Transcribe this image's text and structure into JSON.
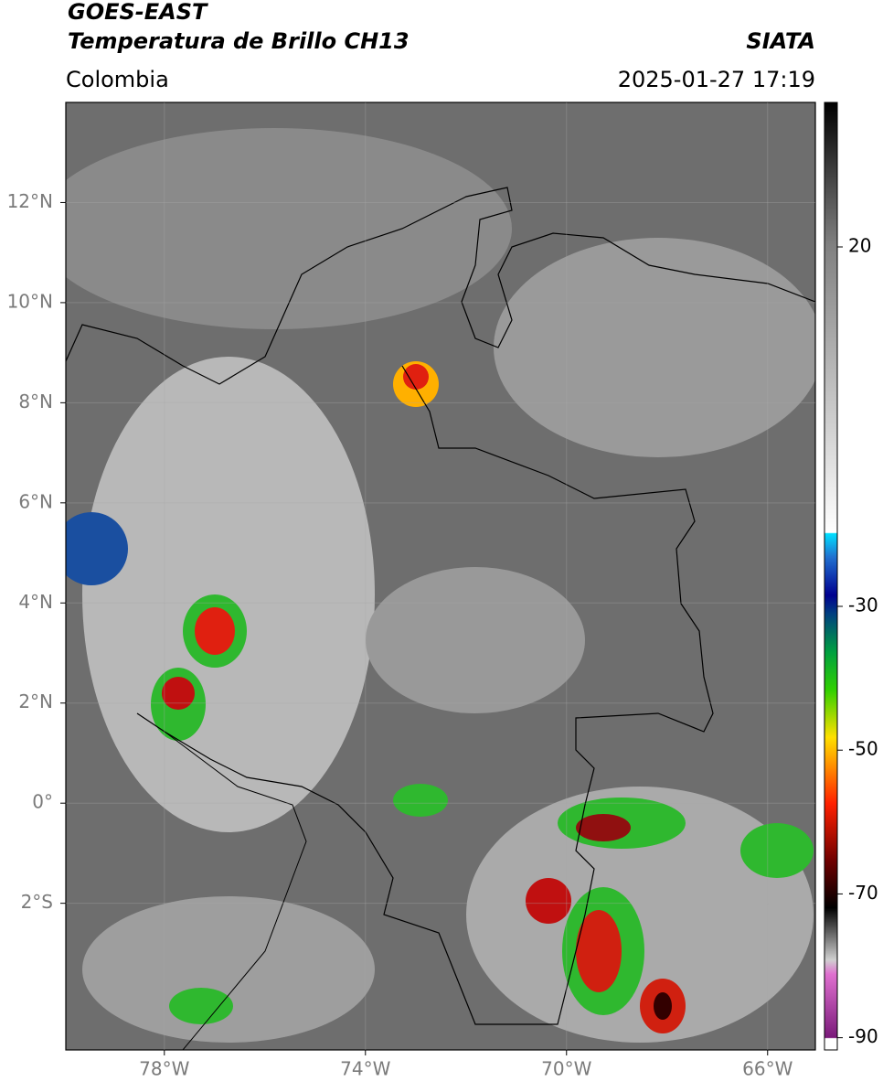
{
  "header": {
    "satellite": "GOES-EAST",
    "product": "Temperatura de Brillo CH13",
    "source": "SIATA",
    "region": "Colombia",
    "datetime": "2025-01-27 17:19"
  },
  "map": {
    "xlim": [
      -79.96,
      -65.05
    ],
    "ylim": [
      -4.93,
      14.0
    ],
    "lon_ticks": [
      {
        "value": -78,
        "label": "78°W"
      },
      {
        "value": -74,
        "label": "74°W"
      },
      {
        "value": -70,
        "label": "70°W"
      },
      {
        "value": -66,
        "label": "66°W"
      }
    ],
    "lat_ticks": [
      {
        "value": 12,
        "label": "12°N"
      },
      {
        "value": 10,
        "label": "10°N"
      },
      {
        "value": 8,
        "label": "8°N"
      },
      {
        "value": 6,
        "label": "6°N"
      },
      {
        "value": 4,
        "label": "4°N"
      },
      {
        "value": 2,
        "label": "2°N"
      },
      {
        "value": 0,
        "label": "0°"
      },
      {
        "value": -2,
        "label": "2°S"
      }
    ],
    "grid": true
  },
  "colorbar": {
    "lim": [
      -91.7,
      40.1
    ],
    "ticks": [
      20,
      -30,
      -50,
      -70,
      -90
    ]
  }
}
